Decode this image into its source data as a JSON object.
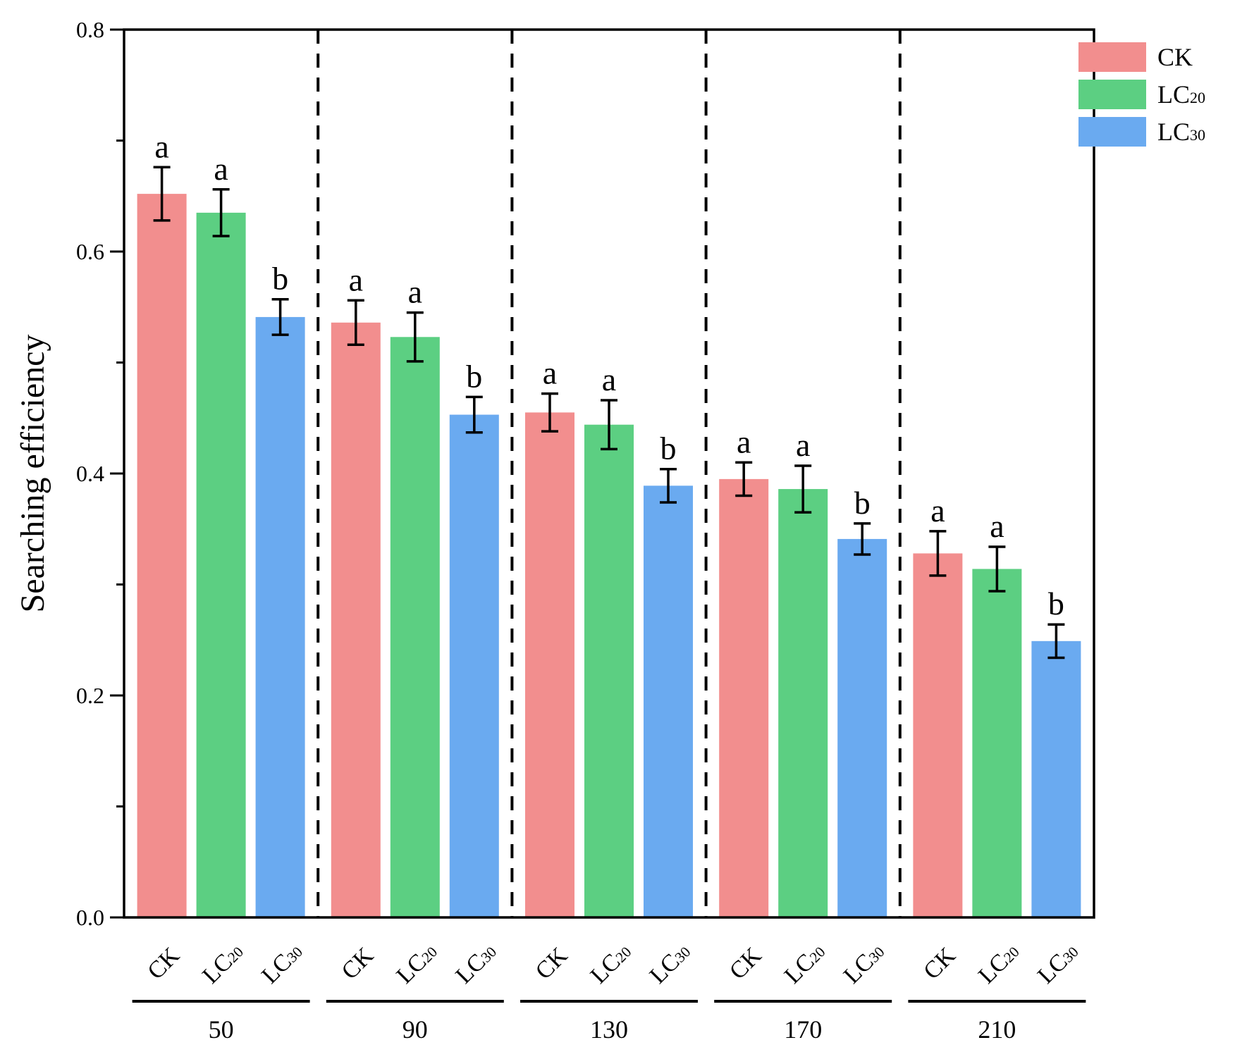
{
  "chart_data": {
    "type": "bar",
    "title": "",
    "xlabel": "",
    "ylabel": "Searching efficiency",
    "ylim": [
      0,
      0.8
    ],
    "yticks": [
      "0.0",
      "0.2",
      "0.4",
      "0.6",
      "0.8"
    ],
    "groups": [
      "50",
      "90",
      "130",
      "170",
      "210"
    ],
    "series": [
      {
        "name": "CK",
        "base": "CK",
        "sub": "",
        "color": "#f28e8e",
        "values": [
          0.652,
          0.536,
          0.455,
          0.395,
          0.328
        ],
        "errors": [
          0.024,
          0.02,
          0.017,
          0.015,
          0.02
        ],
        "letters": [
          "a",
          "a",
          "a",
          "a",
          "a"
        ]
      },
      {
        "name": "LC20",
        "base": "LC",
        "sub": "20",
        "color": "#5ccf82",
        "values": [
          0.635,
          0.523,
          0.444,
          0.386,
          0.314
        ],
        "errors": [
          0.021,
          0.022,
          0.022,
          0.021,
          0.02
        ],
        "letters": [
          "a",
          "a",
          "a",
          "a",
          "a"
        ]
      },
      {
        "name": "LC30",
        "base": "LC",
        "sub": "30",
        "color": "#6aaaf0",
        "values": [
          0.541,
          0.453,
          0.389,
          0.341,
          0.249
        ],
        "errors": [
          0.016,
          0.016,
          0.015,
          0.014,
          0.015
        ],
        "letters": [
          "b",
          "b",
          "b",
          "b",
          "b"
        ]
      }
    ],
    "legend": {
      "position": "top-right",
      "items": [
        {
          "base": "CK",
          "sub": "",
          "color": "#f28e8e"
        },
        {
          "base": "LC",
          "sub": "20",
          "color": "#5ccf82"
        },
        {
          "base": "LC",
          "sub": "30",
          "color": "#6aaaf0"
        }
      ]
    },
    "grid": false,
    "group_dividers": "dashed"
  }
}
